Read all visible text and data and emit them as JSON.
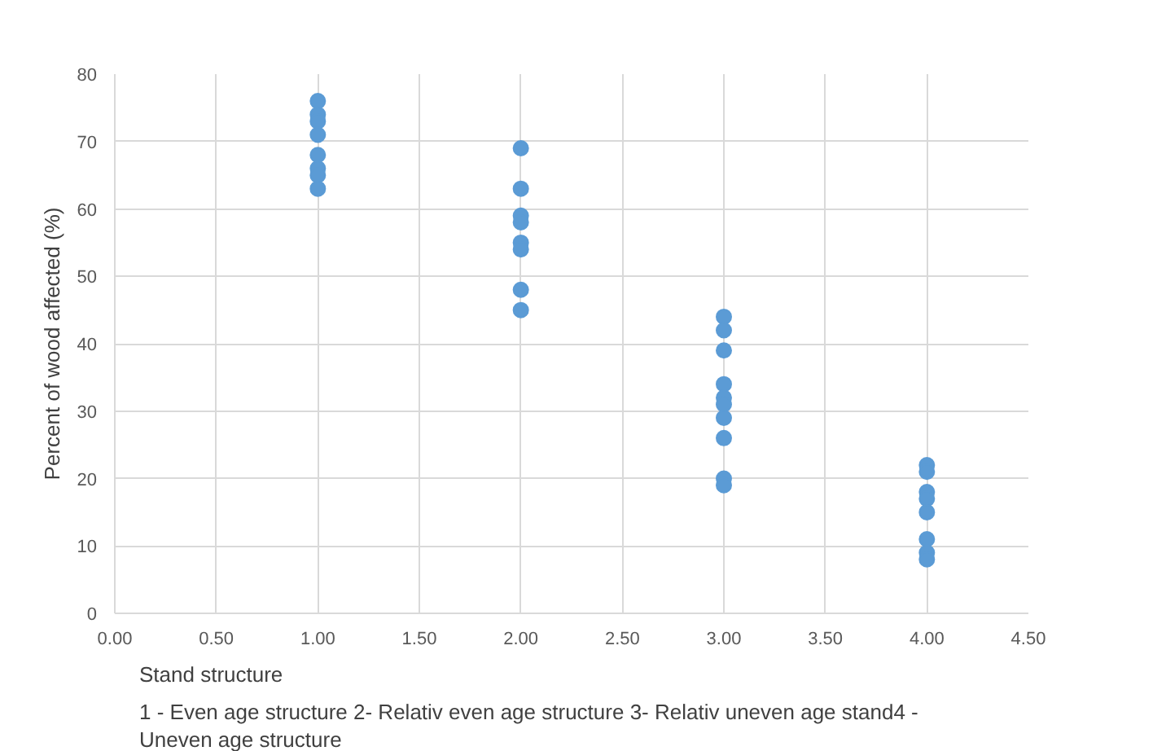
{
  "chart_data": {
    "type": "scatter",
    "xlabel": "Stand structure\n1 - Even age structure 2- Relativ even age structure 3- Relativ uneven age stand4 -\nUneven age structure",
    "ylabel": "Percent of wood affected (%)",
    "series": [
      {
        "color": "#5b9bd5",
        "x": [
          1,
          1,
          1,
          1,
          1,
          1,
          1,
          1,
          2,
          2,
          2,
          2,
          2,
          2,
          2,
          2,
          3,
          3,
          3,
          3,
          3,
          3,
          3,
          3,
          3,
          3,
          4,
          4,
          4,
          4,
          4,
          4,
          4,
          4
        ],
        "values": [
          76,
          74,
          73,
          71,
          68,
          66,
          65,
          63,
          69,
          63,
          59,
          58,
          55,
          54,
          48,
          45,
          44,
          42,
          39,
          34,
          32,
          31,
          29,
          26,
          20,
          19,
          22,
          21,
          18,
          17,
          15,
          11,
          9,
          8
        ]
      }
    ],
    "xlim": [
      0,
      4.5
    ],
    "xticks": [
      {
        "value": 0,
        "label": "0.00"
      },
      {
        "value": 0.5,
        "label": "0.50"
      },
      {
        "value": 1,
        "label": "1.00"
      },
      {
        "value": 1.5,
        "label": "1.50"
      },
      {
        "value": 2,
        "label": "2.00"
      },
      {
        "value": 2.5,
        "label": "2.50"
      },
      {
        "value": 3,
        "label": "3.00"
      },
      {
        "value": 3.5,
        "label": "3.50"
      },
      {
        "value": 4,
        "label": "4.00"
      },
      {
        "value": 4.5,
        "label": "4.50"
      }
    ],
    "ylim": [
      0,
      80
    ],
    "yticks": [
      0,
      10,
      20,
      30,
      40,
      50,
      60,
      70,
      80
    ],
    "grid": true,
    "marker": "circle"
  }
}
